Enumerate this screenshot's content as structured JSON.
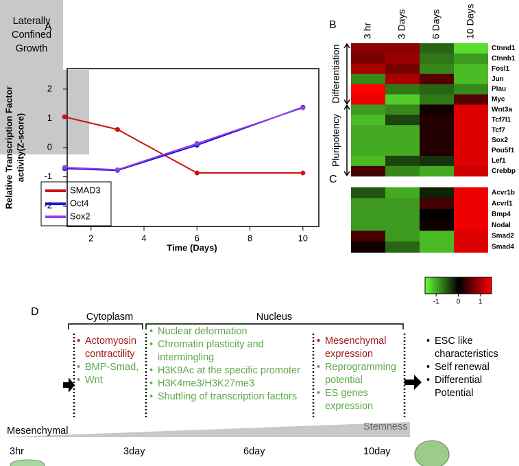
{
  "chart_data": [
    {
      "type": "line",
      "panel": "A",
      "xlabel": "Time (Days)",
      "ylabel": [
        "Relative Transcription Factor",
        "activity(Z-score)"
      ],
      "x": [
        1,
        3,
        6,
        10
      ],
      "xlim": [
        1.1,
        10.6
      ],
      "xticks": [
        2,
        4,
        6,
        8,
        10
      ],
      "ylim": [
        -2.7,
        2.7
      ],
      "yticks": [
        -2,
        -1,
        0,
        1,
        2
      ],
      "legend": "bottom-left",
      "series": [
        {
          "name": "SMAD3",
          "color": "#cc1414",
          "values": [
            1.05,
            0.62,
            -0.87,
            -0.87
          ]
        },
        {
          "name": "Oct4",
          "color": "#1414dd",
          "values": [
            -0.72,
            -0.78,
            0.08,
            1.38
          ]
        },
        {
          "name": "Sox2",
          "color": "#9a3ce0",
          "values": [
            -0.68,
            -0.76,
            0.14,
            1.36
          ]
        }
      ]
    },
    {
      "type": "heatmap",
      "panel": "B",
      "columns": [
        "3 hr",
        "3 Days",
        "6 Days",
        "10 Days"
      ],
      "row_groups": [
        {
          "name": "Differentiation",
          "rows": [
            "Ctnnd1",
            "Ctnnb1",
            "Fosl1",
            "Jun",
            "Plau",
            "Myc"
          ],
          "values": [
            [
              0.8,
              0.8,
              -0.6,
              -1.3
            ],
            [
              0.7,
              0.9,
              -0.7,
              -0.9
            ],
            [
              1.0,
              0.7,
              -0.8,
              -1.1
            ],
            [
              -0.8,
              1.0,
              0.5,
              -1.1
            ],
            [
              1.5,
              -0.7,
              -0.6,
              -0.8
            ],
            [
              1.4,
              -1.2,
              -0.7,
              0.5
            ]
          ]
        },
        {
          "name": "Pluripotency",
          "rows": [
            "Wnt3a",
            "Tcf7l1",
            "Tcf7",
            "Sox2",
            "Pou5f1",
            "Lef1",
            "Crebbp"
          ],
          "values": [
            [
              -0.9,
              -0.8,
              0.1,
              1.3
            ],
            [
              -1.1,
              -0.4,
              0.2,
              1.3
            ],
            [
              -1.0,
              -1.0,
              0.2,
              1.3
            ],
            [
              -1.0,
              -1.0,
              0.2,
              1.3
            ],
            [
              -1.0,
              -1.0,
              0.2,
              1.3
            ],
            [
              -1.1,
              -0.4,
              -0.3,
              1.3
            ],
            [
              0.4,
              -0.8,
              -1.0,
              1.2
            ]
          ]
        }
      ]
    },
    {
      "type": "heatmap",
      "panel": "C",
      "row_groups": [
        {
          "rows": [
            "Acvr1b",
            "Acvrl1",
            "Bmp4",
            "Nodal",
            "Smad2",
            "Smad4"
          ],
          "values": [
            [
              -0.5,
              -1.0,
              -0.2,
              1.4
            ],
            [
              -0.9,
              -0.9,
              0.4,
              1.4
            ],
            [
              -0.9,
              -0.9,
              0.0,
              1.4
            ],
            [
              -0.9,
              -0.9,
              0.1,
              1.4
            ],
            [
              0.4,
              -0.9,
              -1.1,
              1.3
            ],
            [
              0.1,
              -0.6,
              -1.1,
              1.3
            ]
          ]
        }
      ],
      "colorbar": {
        "lim": [
          -1.5,
          1.5
        ],
        "ticks": [
          -1,
          0,
          1
        ],
        "colors": [
          "#66ff33",
          "#000000",
          "#ff0000"
        ]
      }
    }
  ],
  "panel_d": {
    "label": "D",
    "start": "Laterally Confined Growth",
    "sections": [
      {
        "title": "Cytoplasm",
        "items": [
          {
            "text": "Actomyosin contractility",
            "color": "#a01818"
          },
          {
            "text": "BMP-Smad,",
            "color": "#5fa84c"
          },
          {
            "text": "Wnt",
            "color": "#5fa84c"
          }
        ]
      },
      {
        "title": "Nucleus",
        "items": [
          {
            "text": "Nuclear deformation",
            "color": "#5fa84c"
          },
          {
            "text": "Chromatin plasticity and intermingling",
            "color": "#5fa84c"
          },
          {
            "text": "H3K9Ac at the specific promoter",
            "color": "#5fa84c"
          },
          {
            "text": "H3K4me3/H3K27me3",
            "color": "#5fa84c"
          },
          {
            "text": "Shuttling of transcription factors",
            "color": "#5fa84c"
          }
        ]
      },
      {
        "items": [
          {
            "text": "Mesenchymal expression",
            "color": "#a01818"
          },
          {
            "text": "Reprogramming potential",
            "color": "#5fa84c"
          },
          {
            "text": "ES genes expression",
            "color": "#5fa84c"
          }
        ]
      }
    ],
    "end": [
      "ESC like characteristics",
      "Self renewal",
      "Differential Potential"
    ],
    "gradient": [
      "Mesenchymal",
      "Stemness"
    ],
    "timeline": [
      "3hr",
      "3day",
      "6day",
      "10day"
    ]
  }
}
